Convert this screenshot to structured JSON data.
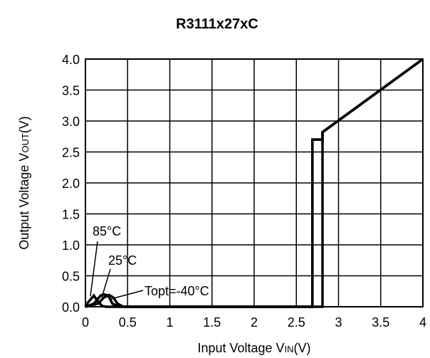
{
  "chart_data": {
    "type": "line",
    "title": "R3111x27xC",
    "xlabel": {
      "prefix": "Input Voltage V",
      "sub": "IN",
      "suffix": "(V)"
    },
    "ylabel": {
      "prefix": "Output Voltage V",
      "sub": "OUT",
      "suffix": "(V)"
    },
    "xlim": [
      0,
      4
    ],
    "ylim": [
      0,
      4
    ],
    "grid": true,
    "xticks": [
      "0",
      "0.5",
      "1",
      "1.5",
      "2",
      "2.5",
      "3",
      "3.5",
      "4"
    ],
    "yticks": [
      "0.0",
      "0.5",
      "1.0",
      "1.5",
      "2.0",
      "2.5",
      "3.0",
      "3.5",
      "4.0"
    ],
    "series": [
      {
        "name": "85°C",
        "x": [
          0,
          0.05,
          0.1,
          0.15,
          0.2,
          0.25,
          2.69,
          2.69,
          2.81,
          2.81,
          4
        ],
        "y": [
          0.02,
          0.1,
          0.18,
          0.08,
          0.01,
          0,
          0,
          2.7,
          2.7,
          2.82,
          4
        ]
      },
      {
        "name": "25°C",
        "x": [
          0,
          0.1,
          0.18,
          0.22,
          0.27,
          0.32,
          0.4,
          2.69,
          2.69,
          2.81,
          2.81,
          4
        ],
        "y": [
          0,
          0.05,
          0.18,
          0.2,
          0.18,
          0.05,
          0,
          0,
          2.7,
          2.7,
          2.82,
          4
        ]
      },
      {
        "name": "Topt=-40°C",
        "x": [
          0,
          0.15,
          0.22,
          0.28,
          0.33,
          0.38,
          0.45,
          2.81,
          2.81,
          4
        ],
        "y": [
          0,
          0.05,
          0.15,
          0.19,
          0.15,
          0.05,
          0,
          0,
          2.82,
          4
        ]
      }
    ],
    "annotations": [
      {
        "text": "85°C",
        "series": "85°C"
      },
      {
        "text": "25°C",
        "series": "25°C"
      },
      {
        "text": "Topt=-40°C",
        "series": "Topt=-40°C"
      }
    ]
  }
}
